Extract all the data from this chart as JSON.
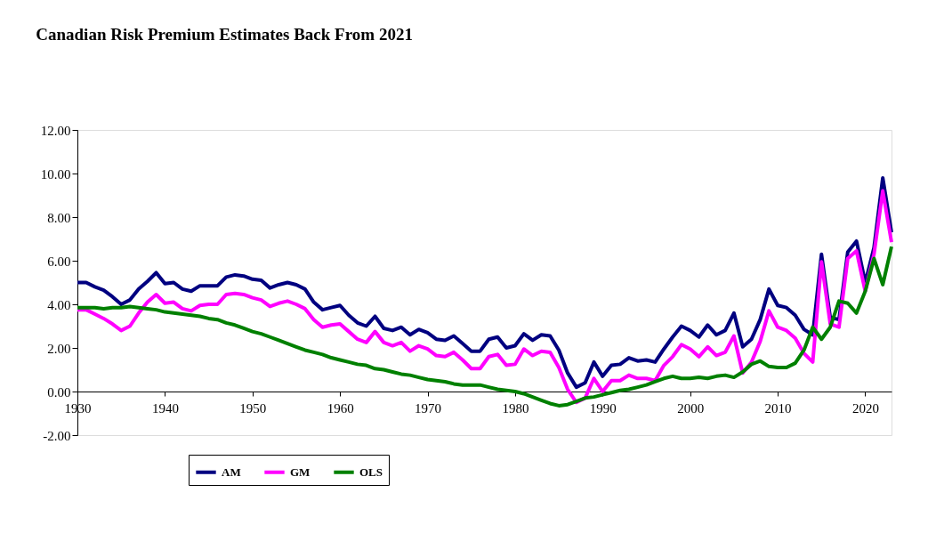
{
  "chart_data": {
    "type": "line",
    "title": "Canadian Risk Premium Estimates Back From 2021",
    "x": [
      1930,
      1931,
      1932,
      1933,
      1934,
      1935,
      1936,
      1937,
      1938,
      1939,
      1940,
      1941,
      1942,
      1943,
      1944,
      1945,
      1946,
      1947,
      1948,
      1949,
      1950,
      1951,
      1952,
      1953,
      1954,
      1955,
      1956,
      1957,
      1958,
      1959,
      1960,
      1961,
      1962,
      1963,
      1964,
      1965,
      1966,
      1967,
      1968,
      1969,
      1970,
      1971,
      1972,
      1973,
      1974,
      1975,
      1976,
      1977,
      1978,
      1979,
      1980,
      1981,
      1982,
      1983,
      1984,
      1985,
      1986,
      1987,
      1988,
      1989,
      1990,
      1991,
      1992,
      1993,
      1994,
      1995,
      1996,
      1997,
      1998,
      1999,
      2000,
      2001,
      2002,
      2003,
      2004,
      2005,
      2006,
      2007,
      2008,
      2009,
      2010,
      2011,
      2012,
      2013,
      2014,
      2015,
      2016,
      2017,
      2018,
      2019,
      2020,
      2021,
      2022,
      2023
    ],
    "series": [
      {
        "name": "AM",
        "color": "#000080",
        "values": [
          5.0,
          5.0,
          4.8,
          4.65,
          4.35,
          4.0,
          4.2,
          4.7,
          5.05,
          5.45,
          4.95,
          5.0,
          4.7,
          4.6,
          4.85,
          4.85,
          4.85,
          5.25,
          5.35,
          5.3,
          5.15,
          5.1,
          4.75,
          4.9,
          5.0,
          4.9,
          4.7,
          4.1,
          3.75,
          3.85,
          3.95,
          3.5,
          3.15,
          3.0,
          3.45,
          2.9,
          2.8,
          2.95,
          2.6,
          2.85,
          2.7,
          2.4,
          2.35,
          2.55,
          2.2,
          1.85,
          1.85,
          2.4,
          2.5,
          2.0,
          2.1,
          2.65,
          2.35,
          2.6,
          2.55,
          1.9,
          0.85,
          0.2,
          0.4,
          1.35,
          0.7,
          1.2,
          1.25,
          1.55,
          1.4,
          1.45,
          1.35,
          1.95,
          2.5,
          3.0,
          2.8,
          2.5,
          3.05,
          2.6,
          2.8,
          3.6,
          2.05,
          2.4,
          3.3,
          4.7,
          3.95,
          3.85,
          3.5,
          2.85,
          2.6,
          6.3,
          3.4,
          3.3,
          6.4,
          6.9,
          5.0,
          6.6,
          9.8,
          7.3
        ]
      },
      {
        "name": "GM",
        "color": "#ff00ff",
        "values": [
          3.75,
          3.75,
          3.55,
          3.35,
          3.1,
          2.8,
          3.0,
          3.6,
          4.1,
          4.45,
          4.05,
          4.1,
          3.8,
          3.7,
          3.95,
          4.0,
          4.0,
          4.45,
          4.5,
          4.45,
          4.3,
          4.2,
          3.9,
          4.05,
          4.15,
          4.0,
          3.8,
          3.3,
          2.95,
          3.05,
          3.1,
          2.75,
          2.4,
          2.25,
          2.75,
          2.25,
          2.1,
          2.25,
          1.85,
          2.1,
          1.95,
          1.65,
          1.6,
          1.8,
          1.45,
          1.05,
          1.05,
          1.6,
          1.7,
          1.2,
          1.25,
          1.95,
          1.65,
          1.85,
          1.8,
          1.1,
          0.1,
          -0.5,
          -0.3,
          0.6,
          0.0,
          0.5,
          0.5,
          0.75,
          0.6,
          0.6,
          0.5,
          1.2,
          1.6,
          2.15,
          1.95,
          1.6,
          2.05,
          1.65,
          1.8,
          2.55,
          0.85,
          1.35,
          2.3,
          3.7,
          2.95,
          2.8,
          2.45,
          1.75,
          1.35,
          5.95,
          3.1,
          2.95,
          6.1,
          6.45,
          4.6,
          6.3,
          9.2,
          6.85
        ]
      },
      {
        "name": "OLS",
        "color": "#008000",
        "values": [
          3.85,
          3.85,
          3.85,
          3.8,
          3.85,
          3.85,
          3.9,
          3.85,
          3.8,
          3.75,
          3.65,
          3.6,
          3.55,
          3.5,
          3.45,
          3.35,
          3.3,
          3.15,
          3.05,
          2.9,
          2.75,
          2.65,
          2.5,
          2.35,
          2.2,
          2.05,
          1.9,
          1.8,
          1.7,
          1.55,
          1.45,
          1.35,
          1.25,
          1.2,
          1.05,
          1.0,
          0.9,
          0.8,
          0.75,
          0.65,
          0.55,
          0.5,
          0.45,
          0.35,
          0.3,
          0.3,
          0.3,
          0.2,
          0.1,
          0.05,
          0.0,
          -0.1,
          -0.25,
          -0.4,
          -0.55,
          -0.65,
          -0.6,
          -0.45,
          -0.3,
          -0.25,
          -0.15,
          -0.05,
          0.05,
          0.1,
          0.2,
          0.3,
          0.45,
          0.6,
          0.7,
          0.6,
          0.6,
          0.65,
          0.6,
          0.7,
          0.75,
          0.65,
          0.9,
          1.25,
          1.4,
          1.15,
          1.1,
          1.1,
          1.3,
          1.9,
          2.95,
          2.4,
          2.95,
          4.15,
          4.05,
          3.6,
          4.6,
          6.1,
          4.9,
          6.65
        ]
      }
    ],
    "xlim": [
      1930,
      2023
    ],
    "xticks": [
      1930,
      1940,
      1950,
      1960,
      1970,
      1980,
      1990,
      2000,
      2010,
      2020
    ],
    "ylim": [
      -2,
      12
    ],
    "yticks": [
      {
        "value": -2,
        "label": "-2.00"
      },
      {
        "value": 0,
        "label": "0.00"
      },
      {
        "value": 2,
        "label": "2.00"
      },
      {
        "value": 4,
        "label": "4.00"
      },
      {
        "value": 6,
        "label": "6.00"
      },
      {
        "value": 8,
        "label": "8.00"
      },
      {
        "value": 10,
        "label": "10.00"
      },
      {
        "value": 12,
        "label": "12.00"
      }
    ],
    "grid": false,
    "legend": "bottom left",
    "marker": "none",
    "line_style": "solid"
  }
}
